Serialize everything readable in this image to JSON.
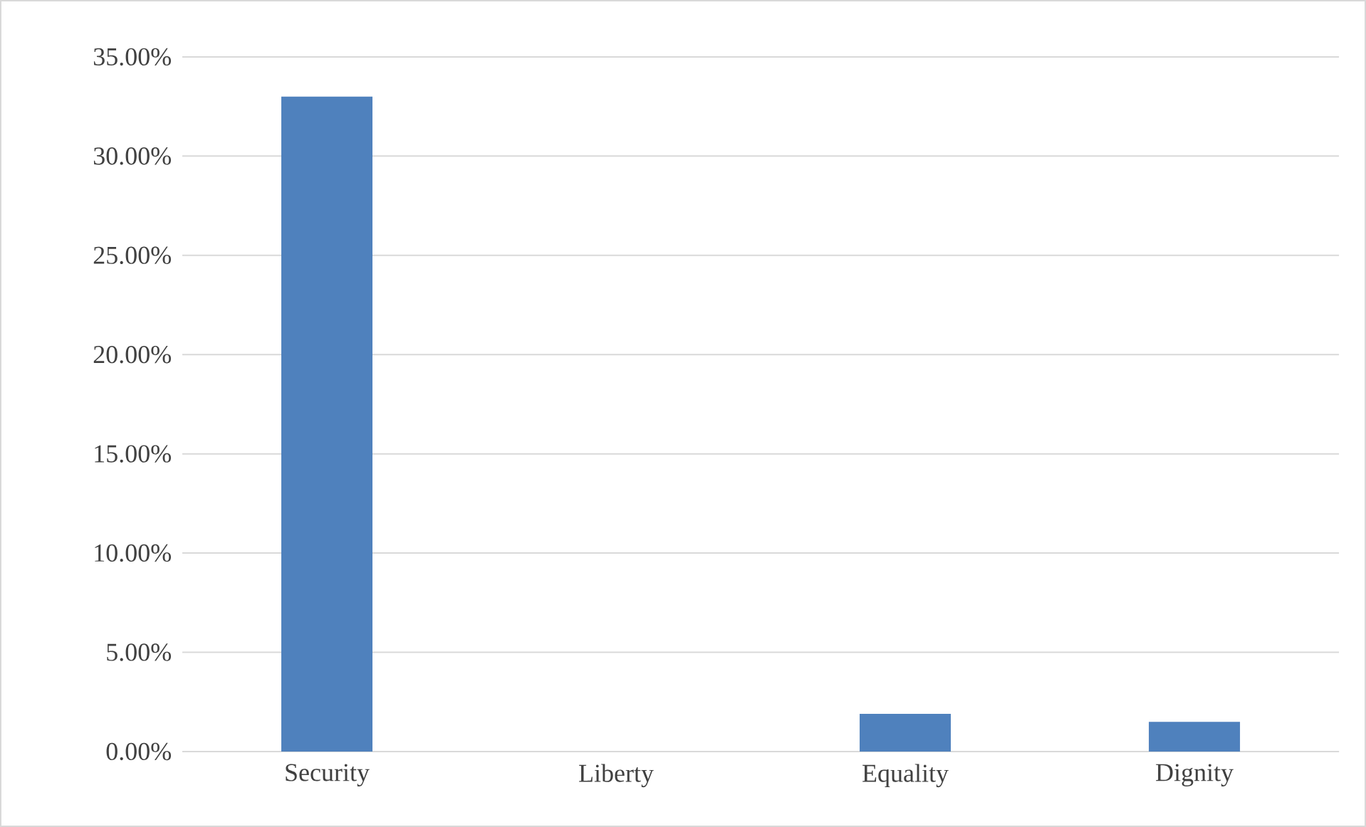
{
  "chart_data": {
    "type": "bar",
    "categories": [
      "Security",
      "Liberty",
      "Equality",
      "Dignity"
    ],
    "values": [
      33.0,
      0,
      1.9,
      1.5
    ],
    "color": "#4f81bd",
    "ylim": [
      0,
      35
    ],
    "yticks": [
      {
        "value": 0,
        "label": "0.00%"
      },
      {
        "value": 5,
        "label": "5.00%"
      },
      {
        "value": 10,
        "label": "10.00%"
      },
      {
        "value": 15,
        "label": "15.00%"
      },
      {
        "value": 20,
        "label": "20.00%"
      },
      {
        "value": 25,
        "label": "25.00%"
      },
      {
        "value": 30,
        "label": "30.00%"
      },
      {
        "value": 35,
        "label": "35.00%"
      }
    ],
    "grid": "y"
  }
}
